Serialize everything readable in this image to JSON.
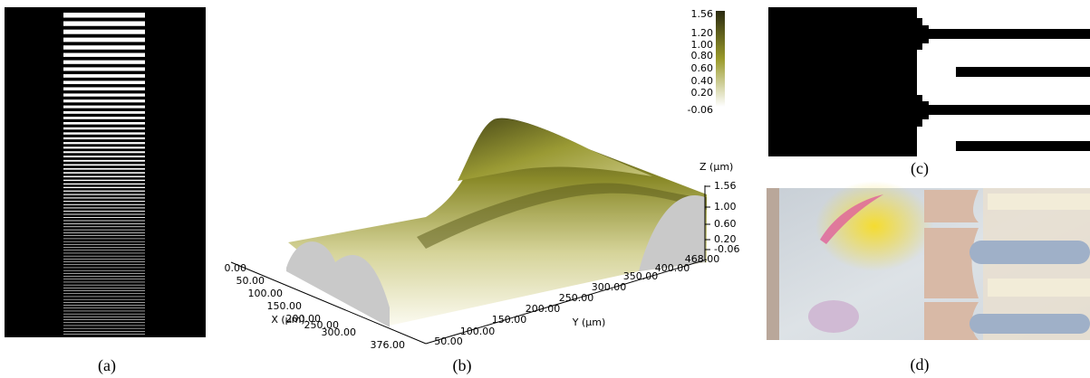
{
  "panels": {
    "a": {
      "caption": "(a)"
    },
    "b": {
      "caption": "(b)",
      "colorbar_ticks": [
        "1.56",
        "1.20",
        "1.00",
        "0.80",
        "0.60",
        "0.40",
        "0.20",
        "-0.06"
      ],
      "z_axis": {
        "label": "Z (µm)",
        "ticks": [
          "1.56",
          "1.00",
          "0.60",
          "0.20",
          "-0.06"
        ]
      },
      "x_axis": {
        "label": "X (µm)",
        "ticks": [
          "0.00",
          "50.00",
          "100.00",
          "150.00",
          "200.00",
          "250.00",
          "300.00",
          "376.00"
        ]
      },
      "y_axis": {
        "label": "Y (µm)",
        "ticks": [
          "50.00",
          "100.00",
          "150.00",
          "200.00",
          "250.00",
          "300.00",
          "350.00",
          "400.00",
          "468.00"
        ]
      }
    },
    "c": {
      "caption": "(c)"
    },
    "d": {
      "caption": "(d)"
    }
  }
}
